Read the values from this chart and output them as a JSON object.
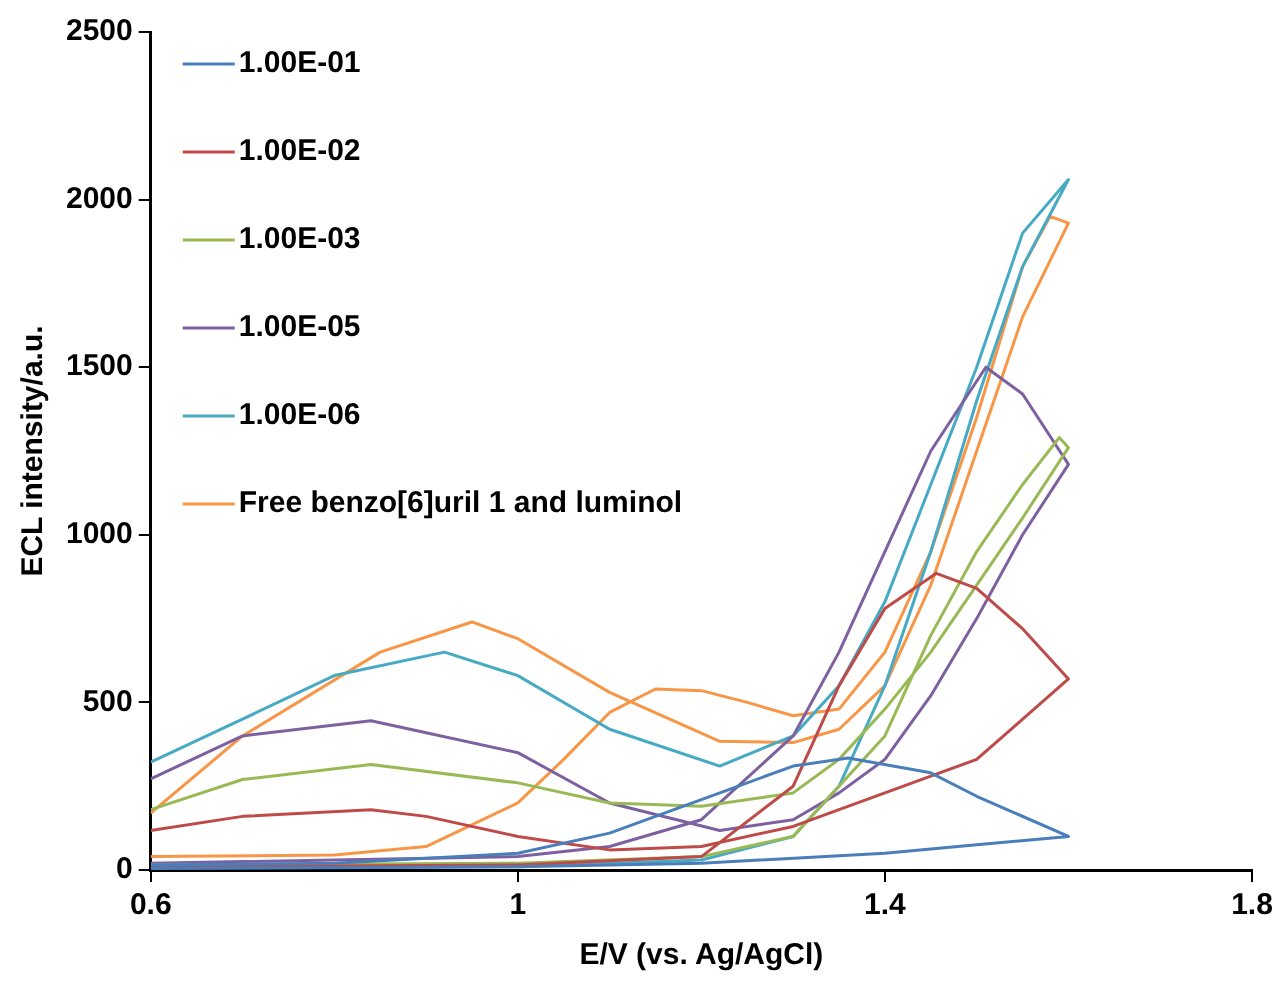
{
  "chart_data": {
    "type": "line",
    "xlabel": "E/V (vs. Ag/AgCl)",
    "ylabel": "ECL intensity/a.u.",
    "xlim": [
      0.6,
      1.8
    ],
    "xticks": [
      0.6,
      1,
      1.4,
      1.8
    ],
    "ylim": [
      0,
      2500
    ],
    "yticks": [
      0,
      500,
      1000,
      1500,
      2000,
      2500
    ],
    "grid": false,
    "legend": "top left",
    "marker": "none",
    "line_style": "solid",
    "series": [
      {
        "name": "1.00E-01",
        "color": "#4a7ebb",
        "x": [
          0.6,
          0.8,
          1.0,
          1.2,
          1.4,
          1.5,
          1.6,
          1.5,
          1.45,
          1.36,
          1.3,
          1.2,
          1.1,
          1.0,
          0.8,
          0.6
        ],
        "values": [
          5,
          7,
          10,
          20,
          50,
          75,
          100,
          220,
          290,
          334,
          310,
          210,
          110,
          50,
          20,
          15
        ]
      },
      {
        "name": "1.00E-02",
        "color": "#be4b48",
        "x": [
          0.6,
          0.8,
          1.0,
          1.2,
          1.3,
          1.35,
          1.4,
          1.456,
          1.5,
          1.55,
          1.6,
          1.5,
          1.4,
          1.3,
          1.2,
          1.1,
          1.0,
          0.9,
          0.84,
          0.7,
          0.6
        ],
        "values": [
          10,
          12,
          15,
          40,
          250,
          550,
          780,
          885,
          840,
          720,
          570,
          330,
          230,
          130,
          70,
          60,
          100,
          160,
          180,
          160,
          118
        ]
      },
      {
        "name": "1.00E-03",
        "color": "#98b954",
        "x": [
          0.6,
          1.0,
          1.2,
          1.3,
          1.4,
          1.45,
          1.5,
          1.55,
          1.59,
          1.6,
          1.55,
          1.5,
          1.45,
          1.4,
          1.35,
          1.3,
          1.2,
          1.1,
          1.0,
          0.84,
          0.7,
          0.6
        ],
        "values": [
          15,
          20,
          40,
          100,
          400,
          700,
          950,
          1150,
          1290,
          1260,
          1050,
          850,
          650,
          480,
          330,
          230,
          190,
          200,
          260,
          315,
          270,
          180
        ]
      },
      {
        "name": "1.00E-05",
        "color": "#7d60a0",
        "x": [
          0.6,
          1.0,
          1.1,
          1.2,
          1.3,
          1.35,
          1.4,
          1.45,
          1.51,
          1.55,
          1.6,
          1.55,
          1.5,
          1.45,
          1.4,
          1.35,
          1.3,
          1.22,
          1.1,
          1.0,
          0.84,
          0.7,
          0.6
        ],
        "values": [
          20,
          40,
          70,
          150,
          400,
          650,
          950,
          1250,
          1500,
          1420,
          1210,
          1000,
          750,
          520,
          330,
          230,
          150,
          118,
          200,
          350,
          445,
          400,
          272
        ]
      },
      {
        "name": "1.00E-06",
        "color": "#46aac5",
        "x": [
          0.6,
          1.0,
          1.2,
          1.3,
          1.35,
          1.4,
          1.45,
          1.5,
          1.55,
          1.6,
          1.55,
          1.5,
          1.45,
          1.4,
          1.35,
          1.3,
          1.22,
          1.1,
          1.0,
          0.92,
          0.8,
          0.7,
          0.6
        ],
        "values": [
          5,
          10,
          30,
          100,
          250,
          550,
          950,
          1400,
          1800,
          2060,
          1900,
          1500,
          1150,
          800,
          550,
          400,
          310,
          420,
          580,
          650,
          580,
          450,
          322
        ]
      },
      {
        "name": "Free benzo[6]uril 1 and luminol",
        "color": "#f79646",
        "x": [
          0.6,
          0.8,
          0.9,
          1.0,
          1.05,
          1.1,
          1.15,
          1.2,
          1.25,
          1.3,
          1.35,
          1.4,
          1.45,
          1.5,
          1.55,
          1.58,
          1.6,
          1.55,
          1.5,
          1.45,
          1.4,
          1.35,
          1.3,
          1.22,
          1.1,
          1.0,
          0.95,
          0.85,
          0.7,
          0.6
        ],
        "values": [
          40,
          45,
          70,
          200,
          330,
          470,
          540,
          535,
          500,
          460,
          480,
          650,
          950,
          1350,
          1800,
          1950,
          1930,
          1650,
          1250,
          850,
          550,
          420,
          380,
          384,
          530,
          690,
          740,
          650,
          400,
          170
        ]
      }
    ]
  }
}
